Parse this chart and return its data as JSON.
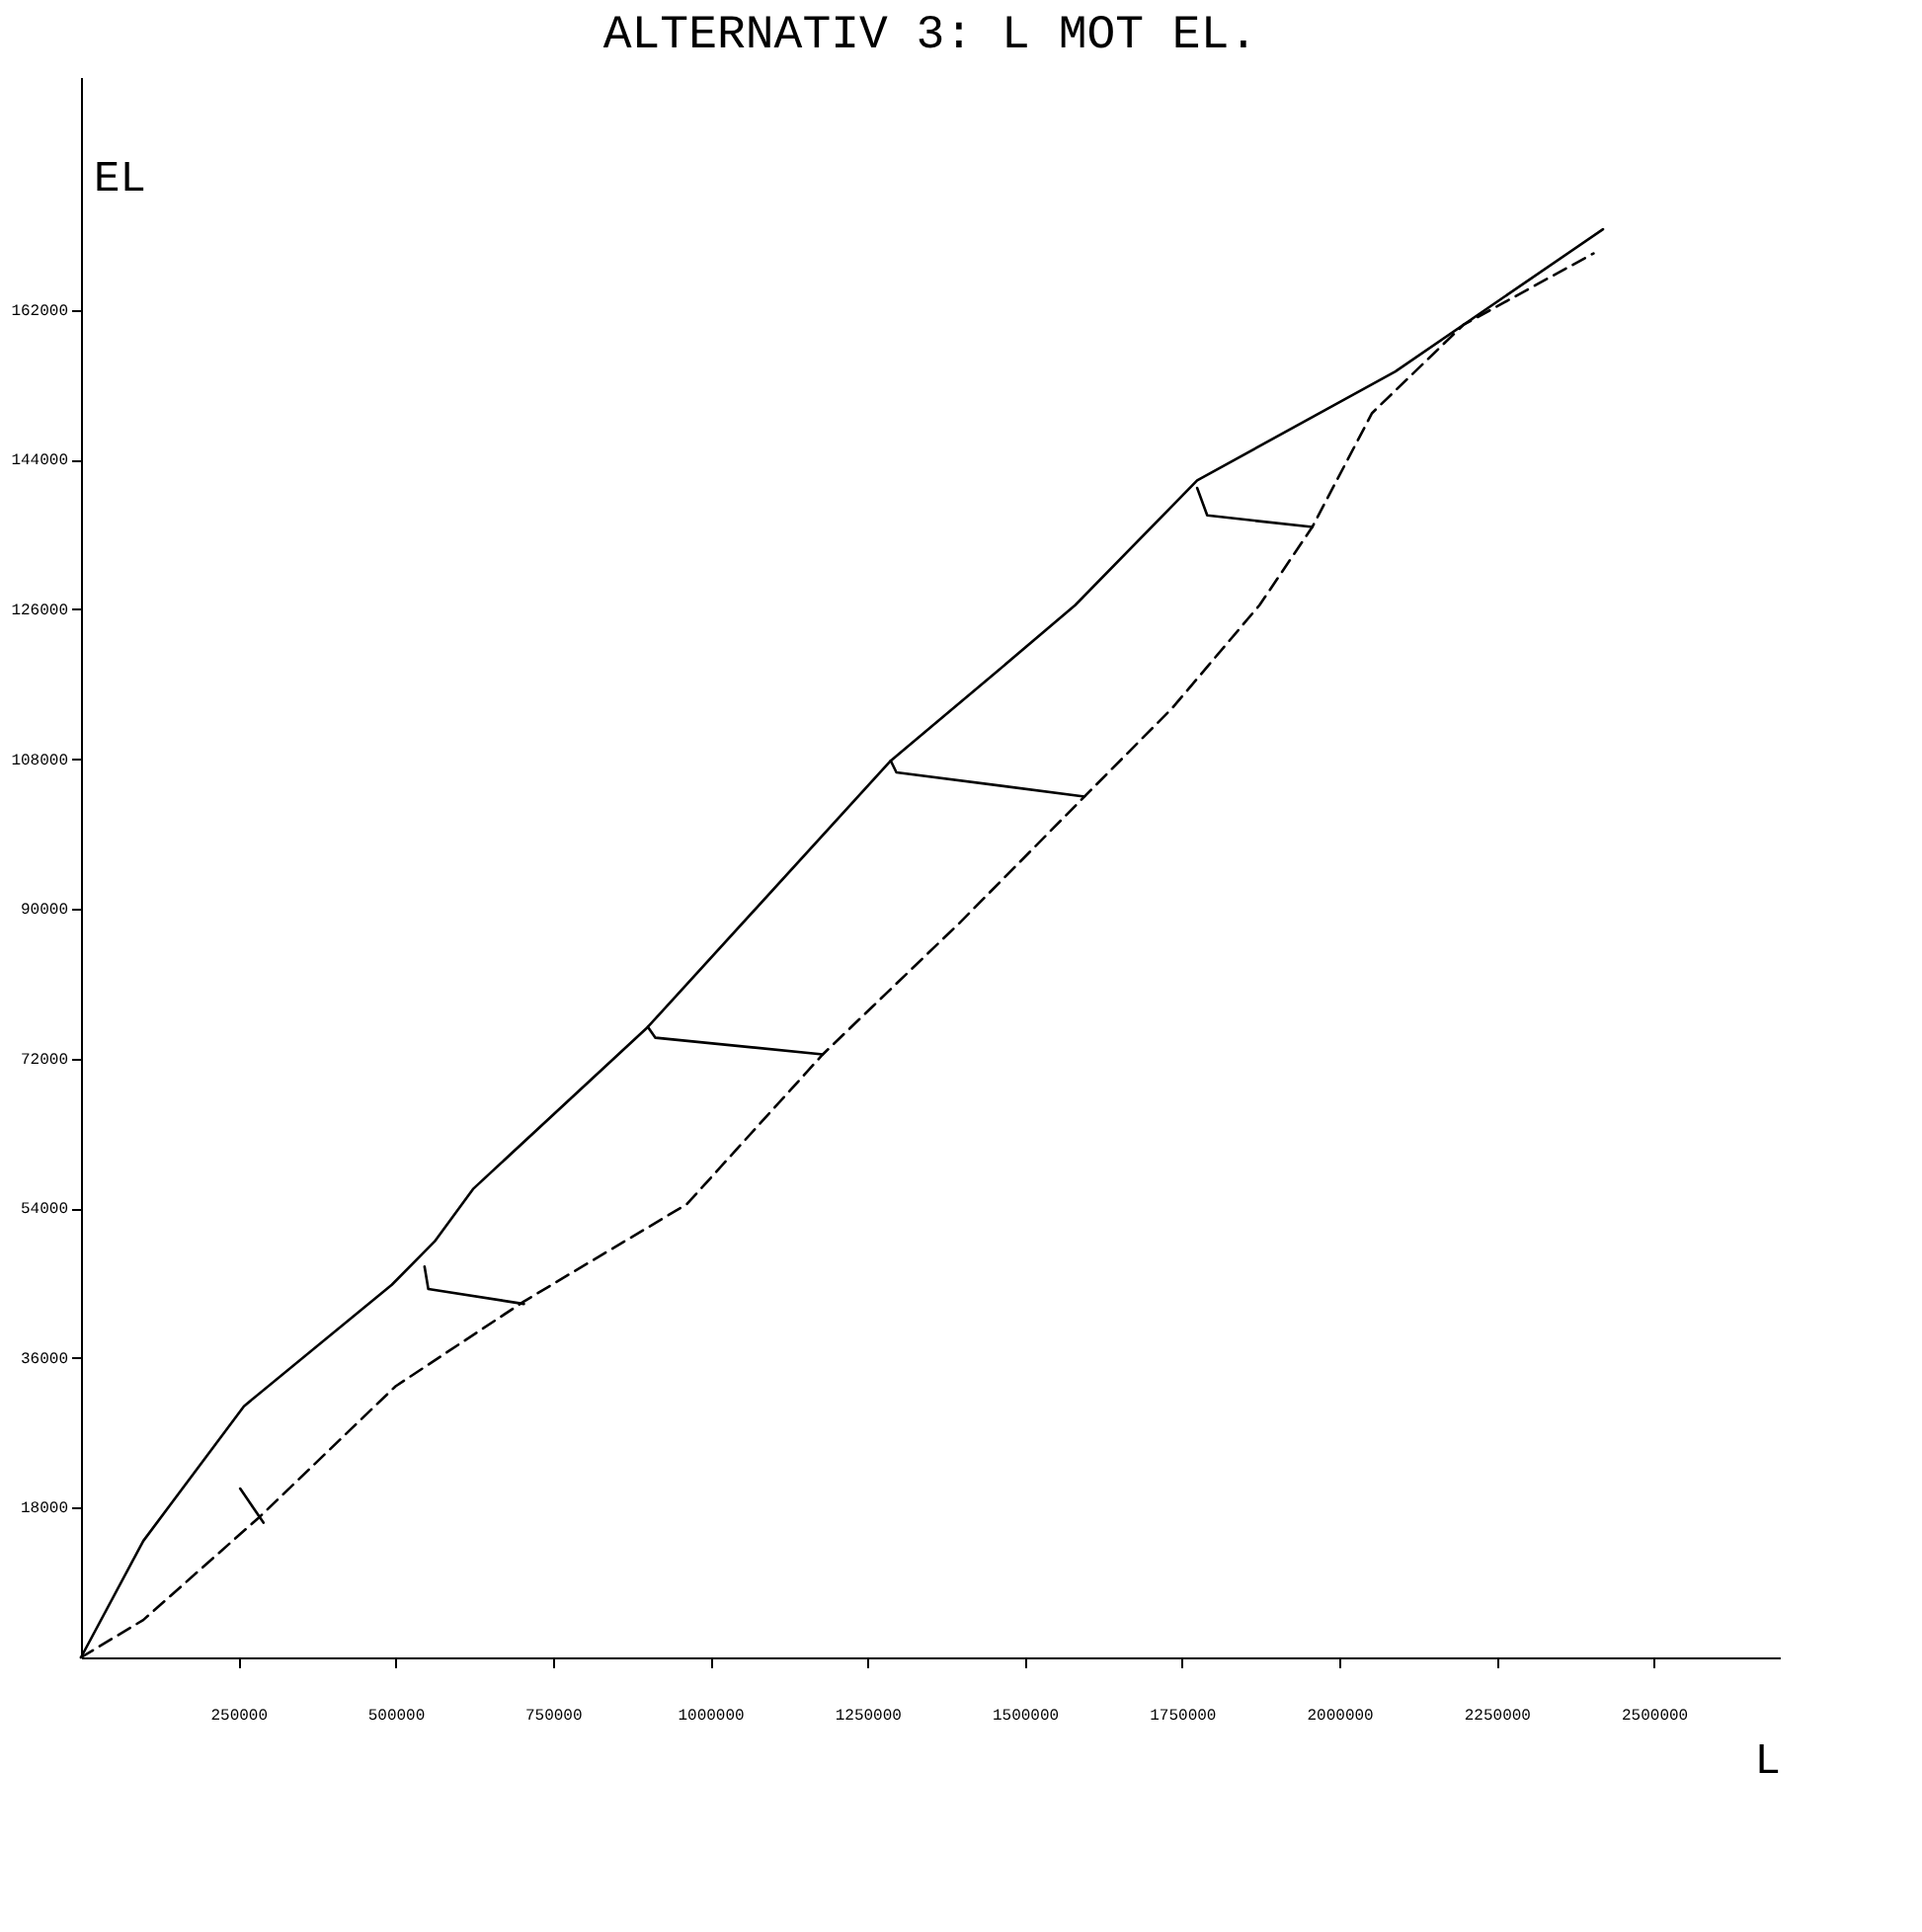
{
  "chart_data": {
    "type": "line",
    "title": "ALTERNATIV 3: L MOT EL.",
    "xlabel": "L",
    "ylabel": "EL",
    "xlim": [
      0,
      2700000
    ],
    "ylim": [
      0,
      190000
    ],
    "xticks": [
      250000,
      500000,
      750000,
      1000000,
      1250000,
      1500000,
      1750000,
      2000000,
      2250000,
      2500000
    ],
    "yticks": [
      18000,
      36000,
      54000,
      72000,
      90000,
      108000,
      126000,
      144000,
      162000
    ],
    "grid": false,
    "marker": "none",
    "series": [
      {
        "color": "#000000",
        "line_style": "solid",
        "x": [
          0,
          99000,
          259000,
          494000,
          562000,
          623000,
          901000,
          1287000,
          1457000,
          1580000,
          1774000,
          2089000,
          2419000
        ],
        "values": [
          0,
          14000,
          30200,
          44800,
          50000,
          56300,
          75800,
          107800,
          118600,
          126500,
          141500,
          154600,
          171700
        ]
      },
      {
        "color": "#000000",
        "line_style": "dashed",
        "x": [
          0,
          99000,
          284000,
          500000,
          704000,
          963000,
          1179000,
          1395000,
          1595000,
          1734000,
          1873000,
          1957000,
          2052000,
          2197000,
          2404000
        ],
        "values": [
          0,
          4500,
          16900,
          32600,
          42800,
          54500,
          72500,
          88200,
          103500,
          114100,
          126500,
          135900,
          149600,
          160200,
          168800
        ]
      },
      {
        "color": "#000000",
        "line_style": "solid",
        "x": [
          253000,
          290000
        ],
        "values": [
          20300,
          16200
        ]
      },
      {
        "color": "#000000",
        "line_style": "solid",
        "x": [
          546000,
          552000,
          704000
        ],
        "values": [
          47000,
          44300,
          42500
        ]
      },
      {
        "color": "#000000",
        "line_style": "solid",
        "x": [
          901000,
          913000,
          1179000
        ],
        "values": [
          75800,
          74500,
          72500
        ]
      },
      {
        "color": "#000000",
        "line_style": "solid",
        "x": [
          1287000,
          1296000,
          1595000
        ],
        "values": [
          107800,
          106400,
          103500
        ]
      },
      {
        "color": "#000000",
        "line_style": "solid",
        "x": [
          1774000,
          1790000,
          1957000
        ],
        "values": [
          140600,
          137300,
          135900
        ]
      }
    ]
  }
}
